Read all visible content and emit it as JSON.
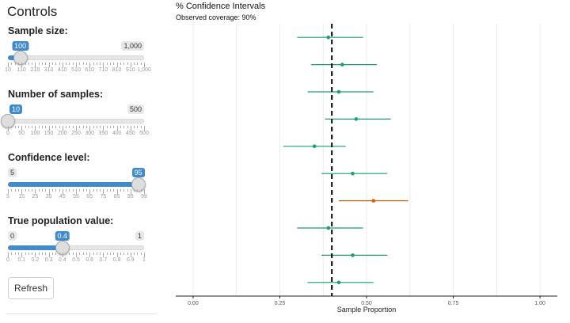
{
  "sidebar": {
    "title": "Controls",
    "refresh_label": "Refresh",
    "controls": [
      {
        "label": "Sample size:",
        "min": 10,
        "max": 1000,
        "value": 100,
        "min_label": "",
        "max_label": "1,000",
        "value_label": "100",
        "fill": false,
        "tick_labels": [
          "10",
          "110",
          "210",
          "310",
          "410",
          "510",
          "610",
          "710",
          "810",
          "910",
          "1,000"
        ]
      },
      {
        "label": "Number of samples:",
        "min": 10,
        "max": 500,
        "value": 10,
        "min_label": "",
        "max_label": "500",
        "value_label": "10",
        "fill": false,
        "tick_labels": [
          "0",
          "50",
          "100",
          "150",
          "200",
          "250",
          "300",
          "350",
          "400",
          "450",
          "500"
        ]
      },
      {
        "label": "Confidence level:",
        "min": 5,
        "max": 99,
        "value": 95,
        "min_label": "5",
        "max_label": "",
        "value_label": "95",
        "fill": true,
        "tick_labels": [
          "5",
          "15",
          "25",
          "35",
          "45",
          "55",
          "65",
          "75",
          "85",
          "95",
          "99"
        ]
      },
      {
        "label": "True population value:",
        "min": 0,
        "max": 1,
        "value": 0.4,
        "min_label": "0",
        "max_label": "1",
        "value_label": "0.4",
        "fill": true,
        "tick_labels": [
          "0",
          "0.1",
          "0.2",
          "0.3",
          "0.4",
          "0.5",
          "0.6",
          "0.7",
          "0.8",
          "0.9",
          "1"
        ]
      }
    ]
  },
  "chart_data": {
    "type": "scatter",
    "title": "% Confidence Intervals",
    "subtitle": "Observed coverage: 90%",
    "xlabel": "Sample Proportion",
    "xlim": [
      -0.05,
      1.05
    ],
    "xticks": [
      0,
      0.25,
      0.5,
      0.75,
      1.0
    ],
    "xtick_labels": [
      "0.00",
      "0.25",
      "0.50",
      "0.75",
      "1.00"
    ],
    "true_value": 0.4,
    "grid": true,
    "colors": {
      "covered": "#1b9e77",
      "missed": "#d95f02"
    },
    "intervals": [
      {
        "estimate": 0.39,
        "lower": 0.3,
        "upper": 0.49,
        "covered": true
      },
      {
        "estimate": 0.43,
        "lower": 0.34,
        "upper": 0.53,
        "covered": true
      },
      {
        "estimate": 0.42,
        "lower": 0.33,
        "upper": 0.52,
        "covered": true
      },
      {
        "estimate": 0.47,
        "lower": 0.38,
        "upper": 0.57,
        "covered": true
      },
      {
        "estimate": 0.35,
        "lower": 0.26,
        "upper": 0.44,
        "covered": true
      },
      {
        "estimate": 0.46,
        "lower": 0.37,
        "upper": 0.56,
        "covered": true
      },
      {
        "estimate": 0.52,
        "lower": 0.42,
        "upper": 0.62,
        "covered": false
      },
      {
        "estimate": 0.39,
        "lower": 0.3,
        "upper": 0.49,
        "covered": true
      },
      {
        "estimate": 0.46,
        "lower": 0.37,
        "upper": 0.56,
        "covered": true
      },
      {
        "estimate": 0.42,
        "lower": 0.33,
        "upper": 0.52,
        "covered": true
      }
    ]
  }
}
